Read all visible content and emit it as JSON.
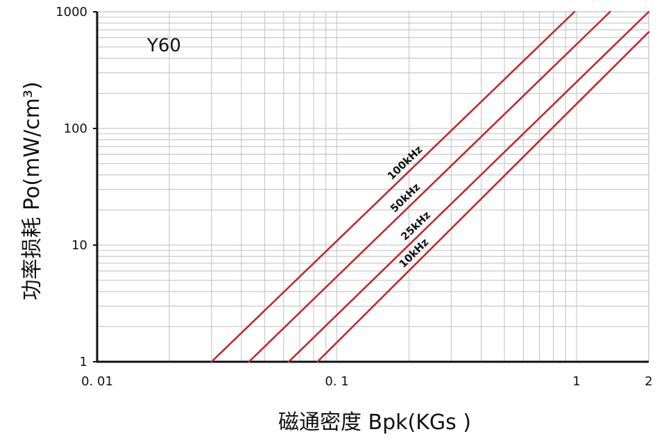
{
  "chart_data": {
    "type": "line",
    "annotation": "Y60",
    "xlabel": "磁通密度 Bpk(KGs )",
    "ylabel": "功率损耗 Po(mW/cm³)",
    "xscale": "log",
    "yscale": "log",
    "xlim": [
      0.01,
      2
    ],
    "ylim": [
      1,
      1000
    ],
    "grid": true,
    "x_ticks": [
      {
        "value": 0.01,
        "label": "0. 01"
      },
      {
        "value": 0.1,
        "label": "0. 1"
      },
      {
        "value": 1,
        "label": "1"
      },
      {
        "value": 2,
        "label": "2"
      }
    ],
    "y_ticks": [
      {
        "value": 1,
        "label": "1"
      },
      {
        "value": 10,
        "label": "10"
      },
      {
        "value": 100,
        "label": "100"
      },
      {
        "value": 1000,
        "label": "1000"
      }
    ],
    "line_color": "#c0282d",
    "series": [
      {
        "name": "100kHz",
        "x": [
          0.03,
          0.98
        ],
        "y": [
          1,
          1000
        ]
      },
      {
        "name": "50kHz",
        "x": [
          0.043,
          1.38
        ],
        "y": [
          1,
          1000
        ]
      },
      {
        "name": "25kHz",
        "x": [
          0.063,
          2.0
        ],
        "y": [
          1,
          1000
        ]
      },
      {
        "name": "10kHz",
        "x": [
          0.083,
          2.0
        ],
        "y": [
          1,
          670
        ]
      }
    ]
  }
}
